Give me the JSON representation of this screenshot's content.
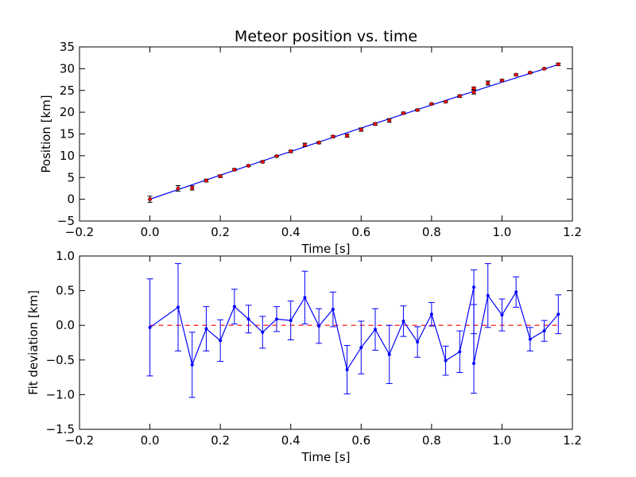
{
  "chart_data": [
    {
      "type": "scatter",
      "title": "Meteor position vs. time",
      "xlabel": "Time [s]",
      "ylabel": "Position [km]",
      "xlim": [
        -0.2,
        1.2
      ],
      "ylim": [
        -5,
        35
      ],
      "xticks": [
        "−0.2",
        "0.0",
        "0.2",
        "0.4",
        "0.6",
        "0.8",
        "1.0",
        "1.2"
      ],
      "yticks": [
        "−5",
        "0",
        "5",
        "10",
        "15",
        "20",
        "25",
        "30",
        "35"
      ],
      "grid": false,
      "colors": {
        "data": "#ff0000",
        "fit": "#0000ff"
      },
      "series": [
        {
          "kind": "points-with-errorbars",
          "x": [
            0.0,
            0.08,
            0.12,
            0.16,
            0.2,
            0.24,
            0.28,
            0.32,
            0.36,
            0.4,
            0.44,
            0.48,
            0.52,
            0.56,
            0.6,
            0.64,
            0.68,
            0.72,
            0.76,
            0.8,
            0.84,
            0.88,
            0.92,
            0.92,
            0.96,
            1.0,
            1.04,
            1.08,
            1.12,
            1.16
          ],
          "y": [
            0.0,
            2.5,
            2.6,
            4.3,
            5.3,
            6.8,
            7.7,
            8.6,
            9.9,
            11.0,
            12.5,
            13.0,
            14.4,
            14.6,
            16.0,
            17.3,
            18.1,
            19.8,
            20.5,
            21.9,
            22.4,
            23.7,
            25.5,
            24.6,
            26.7,
            27.3,
            28.6,
            29.1,
            30.0,
            31.0
          ],
          "err": [
            0.7,
            0.63,
            0.47,
            0.32,
            0.3,
            0.25,
            0.2,
            0.23,
            0.18,
            0.28,
            0.38,
            0.25,
            0.25,
            0.35,
            0.38,
            0.3,
            0.42,
            0.22,
            0.22,
            0.17,
            0.21,
            0.3,
            0.25,
            0.43,
            0.46,
            0.23,
            0.22,
            0.17,
            0.15,
            0.28
          ]
        },
        {
          "kind": "fit-line",
          "x": [
            0.0,
            0.2,
            0.4,
            0.6,
            0.8,
            1.0,
            1.16
          ],
          "y": [
            0.0,
            5.53,
            10.98,
            16.36,
            21.66,
            26.88,
            30.95
          ]
        }
      ]
    },
    {
      "type": "line",
      "xlabel": "Time [s]",
      "ylabel": "Fit deviation [km]",
      "xlim": [
        -0.2,
        1.2
      ],
      "ylim": [
        -1.5,
        1.0
      ],
      "xticks": [
        "−0.2",
        "0.0",
        "0.2",
        "0.4",
        "0.6",
        "0.8",
        "1.0",
        "1.2"
      ],
      "yticks": [
        "−1.5",
        "−1.0",
        "−0.5",
        "0.0",
        "0.5",
        "1.0"
      ],
      "grid": false,
      "colors": {
        "deviation": "#0000ff",
        "zero": "#ff0000"
      },
      "zero_line": {
        "x": [
          0.0,
          1.16
        ],
        "y": 0.0,
        "style": "dashed"
      },
      "series": [
        {
          "kind": "line-with-errorbars",
          "x": [
            0.0,
            0.08,
            0.12,
            0.16,
            0.2,
            0.24,
            0.28,
            0.32,
            0.36,
            0.4,
            0.44,
            0.48,
            0.52,
            0.56,
            0.6,
            0.64,
            0.68,
            0.72,
            0.76,
            0.8,
            0.84,
            0.88,
            0.92,
            0.92,
            0.96,
            1.0,
            1.04,
            1.08,
            1.12,
            1.16
          ],
          "y": [
            -0.03,
            0.26,
            -0.57,
            -0.05,
            -0.22,
            0.27,
            0.09,
            -0.1,
            0.09,
            0.07,
            0.4,
            -0.01,
            0.23,
            -0.64,
            -0.32,
            -0.06,
            -0.42,
            0.06,
            -0.24,
            0.16,
            -0.51,
            -0.38,
            0.55,
            -0.55,
            0.43,
            0.15,
            0.48,
            -0.2,
            -0.08,
            0.16
          ],
          "err": [
            0.7,
            0.63,
            0.47,
            0.32,
            0.3,
            0.25,
            0.2,
            0.23,
            0.18,
            0.28,
            0.38,
            0.25,
            0.25,
            0.35,
            0.38,
            0.3,
            0.42,
            0.22,
            0.22,
            0.17,
            0.21,
            0.3,
            0.25,
            0.43,
            0.46,
            0.23,
            0.22,
            0.17,
            0.15,
            0.28
          ]
        }
      ]
    }
  ]
}
